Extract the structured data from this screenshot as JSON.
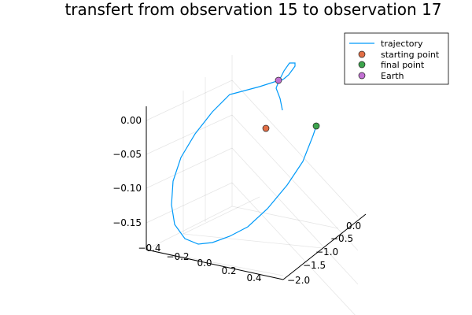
{
  "chart_data": {
    "type": "scatter3d",
    "title": "transfert from observation 15 to observation 17",
    "axes": {
      "x": {
        "ticks": [
          "−0.4",
          "−0.2",
          "0.0",
          "0.2",
          "0.4"
        ]
      },
      "y": {
        "ticks": [
          "0.0",
          "−0.5",
          "−1.0",
          "−1.5",
          "−2.0"
        ]
      },
      "z": {
        "ticks": [
          "0.00",
          "−0.05",
          "−0.10",
          "−0.15"
        ]
      }
    },
    "grid": true,
    "legend_position": "top-right",
    "series": [
      {
        "name": "trajectory",
        "kind": "line",
        "color": "#009af9"
      },
      {
        "name": "starting point",
        "kind": "marker",
        "color": "#e26f46"
      },
      {
        "name": "final point",
        "kind": "marker",
        "color": "#3da44d"
      },
      {
        "name": "Earth",
        "kind": "marker",
        "color": "#c271d2"
      }
    ]
  }
}
